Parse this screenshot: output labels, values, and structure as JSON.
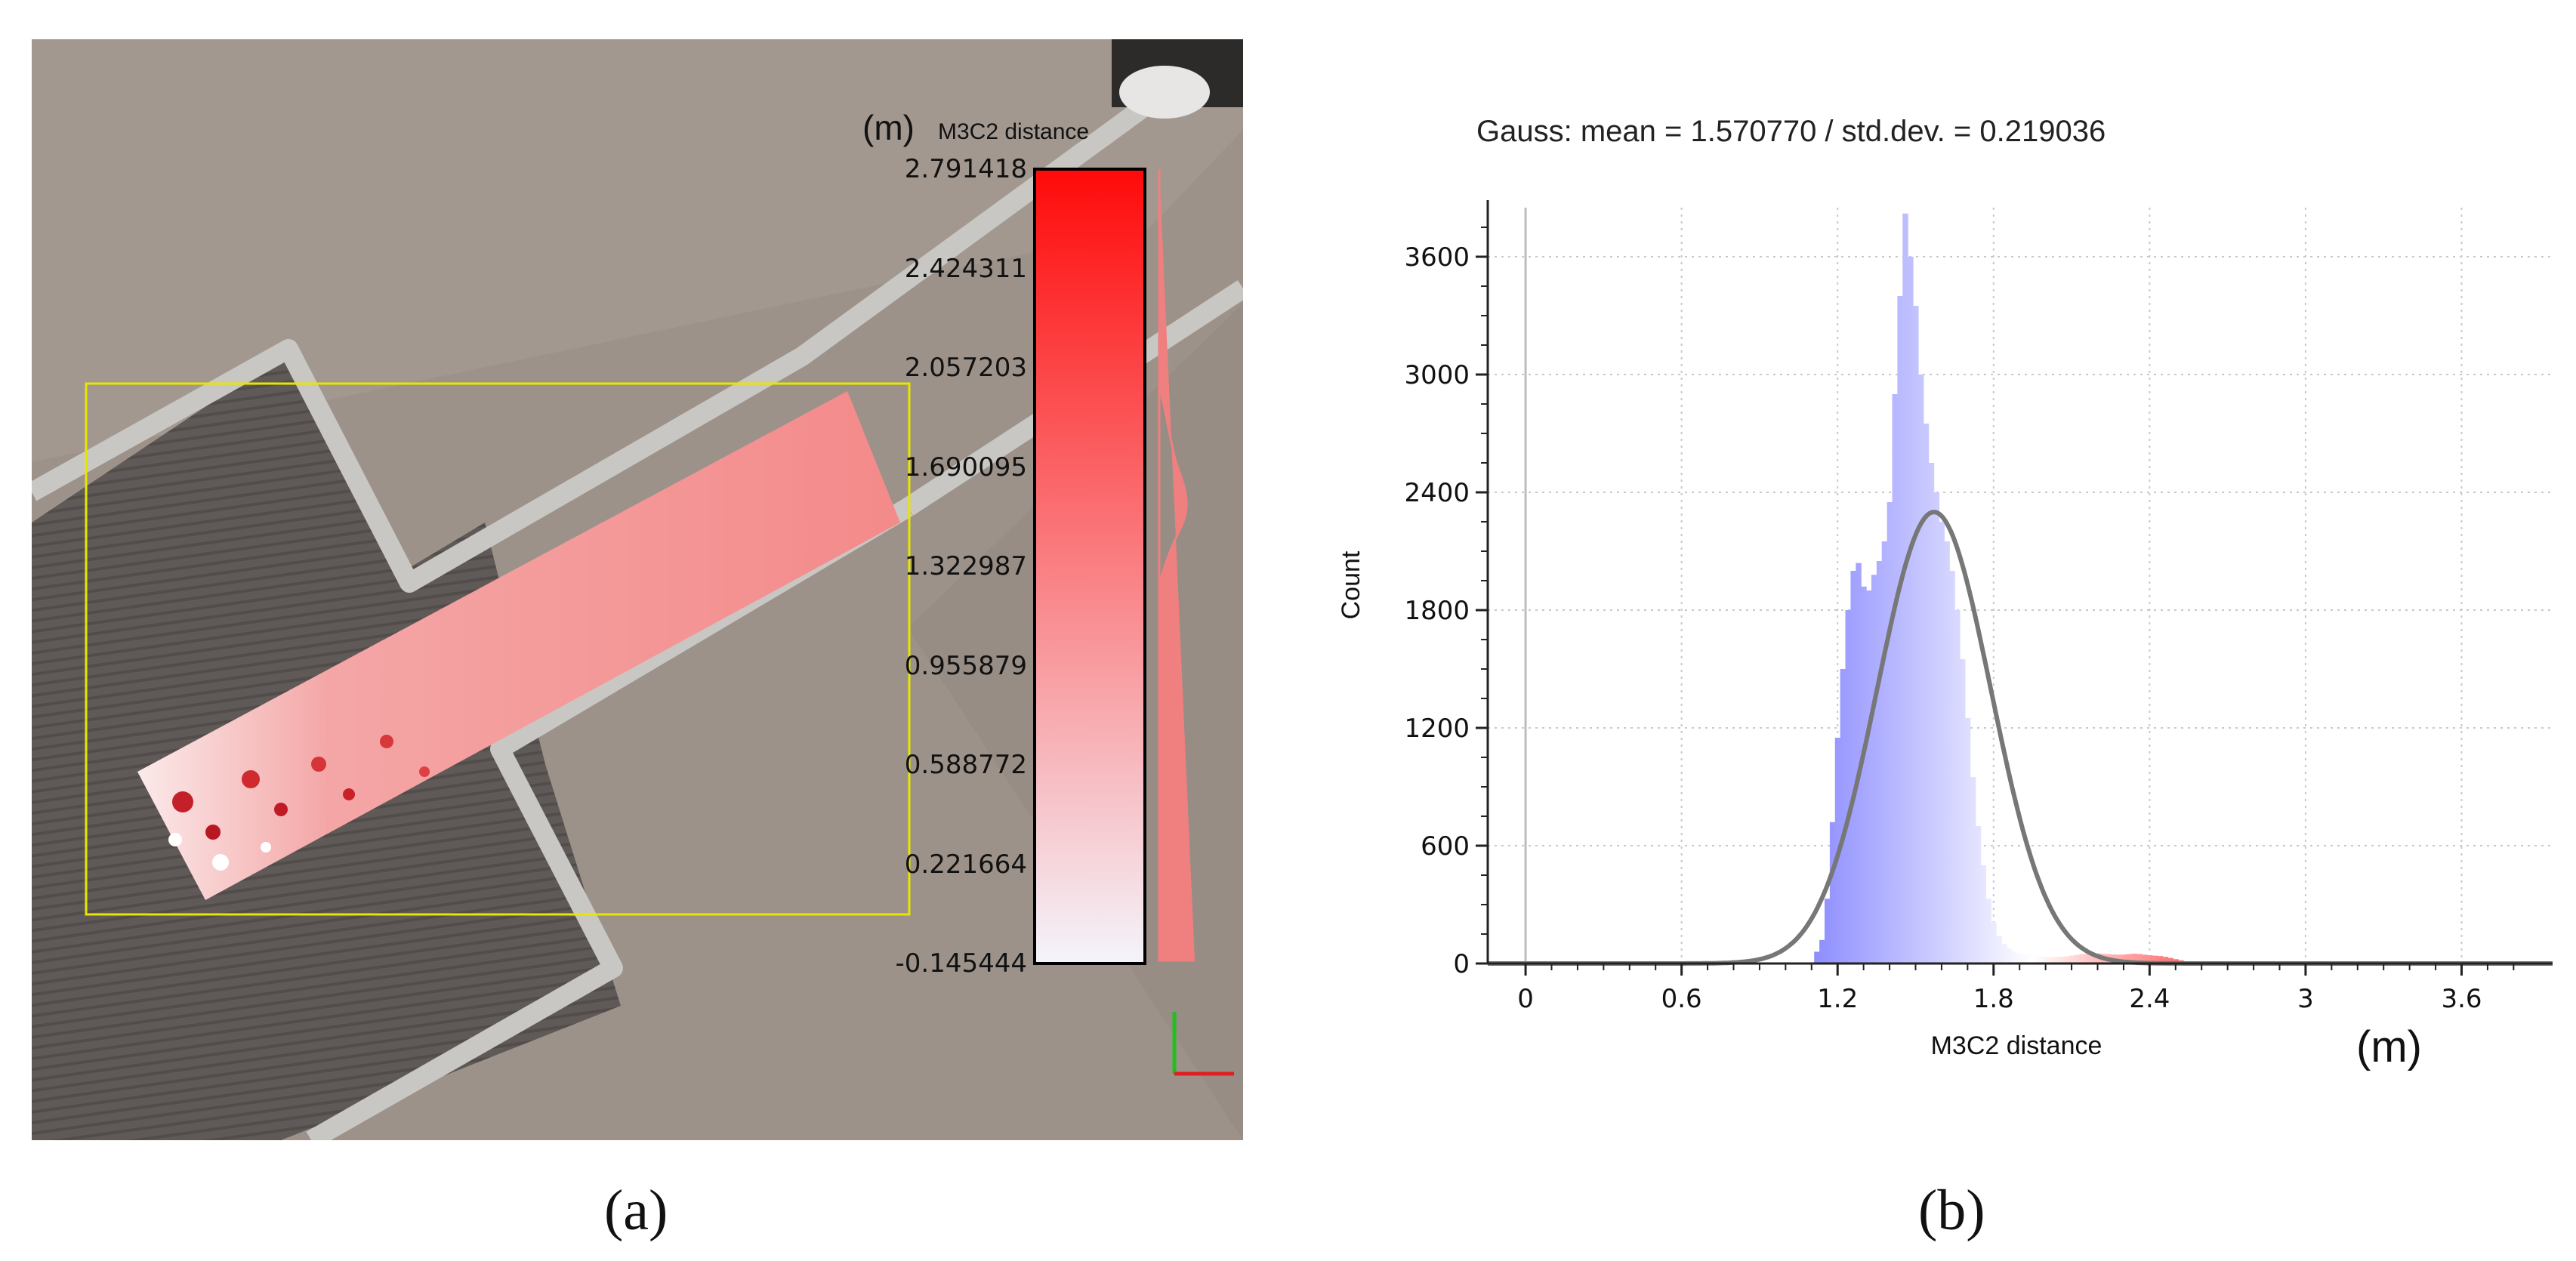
{
  "panel_a": {
    "caption": "(a)",
    "unit": "(m)",
    "scalar_field_name": "M3C2 distance",
    "colorbar": {
      "min": -0.145444,
      "max": 2.791418,
      "ticks": [
        "2.791418",
        "2.424311",
        "2.057203",
        "1.690095",
        "1.322987",
        "0.955879",
        "0.588772",
        "0.221664",
        "-0.145444"
      ],
      "color_low": "#f4f4fb",
      "color_high": "#ff0a0a"
    },
    "colors": {
      "selection_box": "#e6e600",
      "axis_x": "#e02020",
      "axis_y": "#20c020"
    }
  },
  "chart_data": {
    "type": "bar",
    "caption": "(b)",
    "title": "Gauss: mean = 1.570770 / std.dev. = 0.219036",
    "xlabel": "M3C2 distance",
    "unit": "(m)",
    "ylabel": "Count",
    "xlim": [
      -0.145444,
      3.95
    ],
    "ylim": [
      0,
      3850
    ],
    "x_ticks": [
      "0",
      "0.6",
      "1.2",
      "1.8",
      "2.4",
      "3",
      "3.6"
    ],
    "y_ticks": [
      "0",
      "600",
      "1200",
      "1800",
      "2400",
      "3000",
      "3600"
    ],
    "grid": true,
    "histogram": {
      "bin_width": 0.02,
      "bins": [
        {
          "x": 1.12,
          "count": 60
        },
        {
          "x": 1.14,
          "count": 120
        },
        {
          "x": 1.16,
          "count": 330
        },
        {
          "x": 1.18,
          "count": 720
        },
        {
          "x": 1.2,
          "count": 1150
        },
        {
          "x": 1.22,
          "count": 1500
        },
        {
          "x": 1.24,
          "count": 1800
        },
        {
          "x": 1.26,
          "count": 2000
        },
        {
          "x": 1.28,
          "count": 2040
        },
        {
          "x": 1.3,
          "count": 1920
        },
        {
          "x": 1.32,
          "count": 1900
        },
        {
          "x": 1.34,
          "count": 1980
        },
        {
          "x": 1.36,
          "count": 2050
        },
        {
          "x": 1.38,
          "count": 2150
        },
        {
          "x": 1.4,
          "count": 2350
        },
        {
          "x": 1.42,
          "count": 2900
        },
        {
          "x": 1.44,
          "count": 3400
        },
        {
          "x": 1.46,
          "count": 3820
        },
        {
          "x": 1.48,
          "count": 3600
        },
        {
          "x": 1.5,
          "count": 3350
        },
        {
          "x": 1.52,
          "count": 3000
        },
        {
          "x": 1.54,
          "count": 2750
        },
        {
          "x": 1.56,
          "count": 2550
        },
        {
          "x": 1.58,
          "count": 2400
        },
        {
          "x": 1.6,
          "count": 2250
        },
        {
          "x": 1.62,
          "count": 2150
        },
        {
          "x": 1.64,
          "count": 2000
        },
        {
          "x": 1.66,
          "count": 1800
        },
        {
          "x": 1.68,
          "count": 1550
        },
        {
          "x": 1.7,
          "count": 1250
        },
        {
          "x": 1.72,
          "count": 950
        },
        {
          "x": 1.74,
          "count": 700
        },
        {
          "x": 1.76,
          "count": 500
        },
        {
          "x": 1.78,
          "count": 330
        },
        {
          "x": 1.8,
          "count": 210
        },
        {
          "x": 1.82,
          "count": 140
        },
        {
          "x": 1.84,
          "count": 100
        },
        {
          "x": 1.86,
          "count": 75
        },
        {
          "x": 1.88,
          "count": 60
        },
        {
          "x": 1.9,
          "count": 50
        },
        {
          "x": 1.92,
          "count": 45
        },
        {
          "x": 1.94,
          "count": 40
        },
        {
          "x": 1.96,
          "count": 38
        },
        {
          "x": 1.98,
          "count": 36
        },
        {
          "x": 2.0,
          "count": 34
        },
        {
          "x": 2.02,
          "count": 33
        },
        {
          "x": 2.04,
          "count": 33
        },
        {
          "x": 2.06,
          "count": 34
        },
        {
          "x": 2.08,
          "count": 36
        },
        {
          "x": 2.1,
          "count": 40
        },
        {
          "x": 2.12,
          "count": 44
        },
        {
          "x": 2.14,
          "count": 48
        },
        {
          "x": 2.16,
          "count": 50
        },
        {
          "x": 2.18,
          "count": 52
        },
        {
          "x": 2.2,
          "count": 52
        },
        {
          "x": 2.22,
          "count": 50
        },
        {
          "x": 2.24,
          "count": 48
        },
        {
          "x": 2.26,
          "count": 46
        },
        {
          "x": 2.28,
          "count": 45
        },
        {
          "x": 2.3,
          "count": 46
        },
        {
          "x": 2.32,
          "count": 48
        },
        {
          "x": 2.34,
          "count": 50
        },
        {
          "x": 2.36,
          "count": 48
        },
        {
          "x": 2.38,
          "count": 45
        },
        {
          "x": 2.4,
          "count": 42
        },
        {
          "x": 2.42,
          "count": 40
        },
        {
          "x": 2.44,
          "count": 38
        },
        {
          "x": 2.46,
          "count": 34
        },
        {
          "x": 2.48,
          "count": 28
        },
        {
          "x": 2.5,
          "count": 22
        },
        {
          "x": 2.52,
          "count": 16
        },
        {
          "x": 2.54,
          "count": 10
        },
        {
          "x": 2.56,
          "count": 6
        },
        {
          "x": 2.58,
          "count": 3
        }
      ]
    },
    "gauss_curve": {
      "mean": 1.57077,
      "std_dev": 0.219036,
      "peak_count": 2300
    },
    "colors": {
      "low": "#8c8cff",
      "mid": "#ffffff",
      "high": "#ff5a5a",
      "curve": "#777777",
      "grid": "#c8c8c8"
    }
  }
}
